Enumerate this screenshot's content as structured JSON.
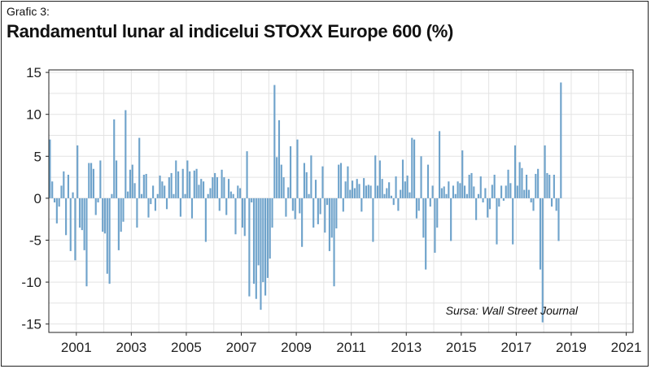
{
  "figure": {
    "label": "Grafic 3:",
    "title": "Randamentul lunar al indicelui STOXX Europe 600 (%)",
    "source": "Sursa: Wall Street Journal"
  },
  "chart_data": {
    "type": "bar",
    "bar_color": "#6fa3cb",
    "grid": true,
    "xlim": [
      2000.0,
      2021.25
    ],
    "ylim": [
      -16,
      15.3
    ],
    "y_ticks": [
      15,
      10,
      5,
      0,
      -5,
      -10,
      -15
    ],
    "x_ticks": [
      2001,
      2003,
      2005,
      2007,
      2009,
      2011,
      2013,
      2015,
      2017,
      2019,
      2021
    ],
    "start": "2000-01",
    "values": [
      7.0,
      2.0,
      -0.5,
      -3.0,
      -1.0,
      1.5,
      3.2,
      -4.4,
      2.8,
      -6.3,
      0.7,
      -7.4,
      6.3,
      -3.5,
      -3.8,
      -6.2,
      -10.5,
      4.2,
      4.2,
      3.5,
      -2.0,
      -0.5,
      4.5,
      -4.0,
      -4.2,
      -9.0,
      -10.2,
      0.5,
      9.4,
      4.5,
      -6.2,
      -4.0,
      -2.8,
      10.5,
      0.8,
      3.4,
      4.0,
      1.8,
      -3.5,
      7.2,
      0.5,
      2.8,
      2.9,
      -2.3,
      -0.7,
      1.5,
      -1.5,
      0.5,
      2.7,
      2.0,
      1.5,
      -1.3,
      2.5,
      3.0,
      0.5,
      4.5,
      3.2,
      -2.2,
      3.5,
      0.5,
      4.5,
      3.2,
      -2.4,
      3.3,
      3.5,
      1.6,
      2.3,
      2.0,
      -5.2,
      0.5,
      1.2,
      2.5,
      3.0,
      2.5,
      -1.5,
      3.4,
      2.5,
      -2.0,
      2.3,
      0.8,
      0.5,
      -4.3,
      1.5,
      1.2,
      -3.5,
      -4.5,
      5.6,
      -11.7,
      -0.5,
      -10.2,
      -12.0,
      -8.0,
      -13.3,
      -10.0,
      -11.6,
      -9.5,
      -7.2,
      -3.5,
      13.5,
      4.9,
      9.3,
      4.0,
      2.5,
      -2.2,
      1.3,
      6.2,
      -1.5,
      -2.5,
      7.0,
      -1.8,
      -5.8,
      4.2,
      3.1,
      0.5,
      5.1,
      -3.5,
      2.2,
      -3.1,
      -1.9,
      3.8,
      -4.1,
      -0.8,
      -6.3,
      -4.7,
      -10.5,
      -3.6,
      4.0,
      4.2,
      -1.6,
      2.0,
      3.8,
      1.0,
      2.1,
      1.2,
      2.3,
      1.7,
      -1.6,
      2.4,
      1.5,
      1.6,
      1.5,
      -5.2,
      5.1,
      1.5,
      4.5,
      2.3,
      0.5,
      1.2,
      1.9,
      0.3,
      -0.8,
      2.6,
      -1.5,
      1.0,
      4.6,
      2.0,
      2.7,
      0.7,
      7.2,
      7.0,
      -2.4,
      -1.5,
      5.0,
      -4.7,
      -8.5,
      4.0,
      -1.0,
      1.5,
      -6.5,
      -3.5,
      8.0,
      1.2,
      1.4,
      0.5,
      2.0,
      -5.1,
      1.5,
      0.5,
      2.0,
      1.8,
      5.7,
      1.5,
      0.5,
      2.8,
      3.0,
      1.4,
      -2.6,
      0.5,
      2.6,
      -0.5,
      1.2,
      -2.3,
      -1.3,
      1.6,
      2.8,
      -5.5,
      -1.0,
      1.5,
      -0.3,
      1.5,
      3.4,
      1.8,
      -5.5,
      6.3,
      1.5,
      4.3,
      3.6,
      1.0,
      2.8,
      1.0,
      -0.5,
      -1.5,
      2.9,
      3.5,
      -8.5,
      -14.8,
      6.3,
      3.0,
      2.8,
      -1.0,
      2.8,
      -1.5,
      -5.1,
      13.8
    ]
  }
}
